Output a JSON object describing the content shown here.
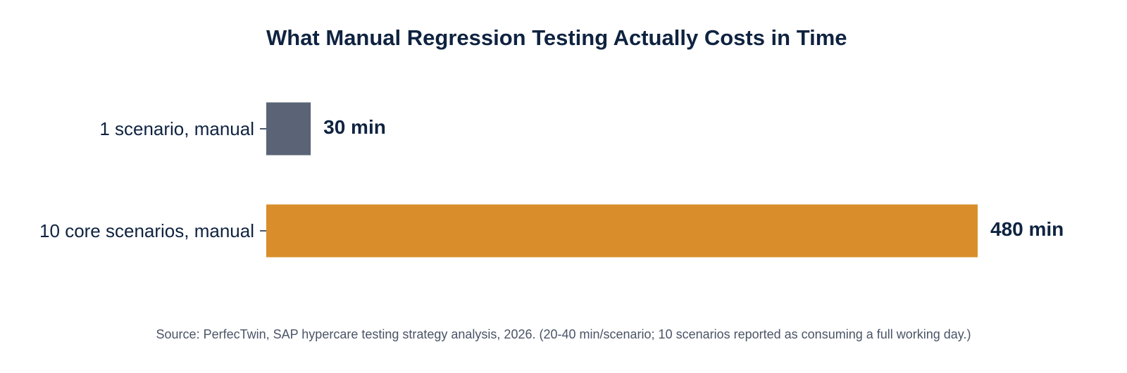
{
  "chart_data": {
    "type": "bar",
    "orientation": "horizontal",
    "title": "What Manual Regression Testing Actually Costs in Time",
    "categories": [
      "1 scenario, manual",
      "10 core scenarios, manual"
    ],
    "values": [
      30,
      480
    ],
    "value_labels": [
      "30 min",
      "480 min"
    ],
    "colors": [
      "#5a6476",
      "#d98e2b"
    ],
    "xlim": [
      0,
      480
    ],
    "grid": false,
    "source": "Source: PerfecTwin, SAP hypercare testing strategy analysis, 2026. (20-40 min/scenario; 10 scenarios reported as consuming a full working day.)"
  }
}
